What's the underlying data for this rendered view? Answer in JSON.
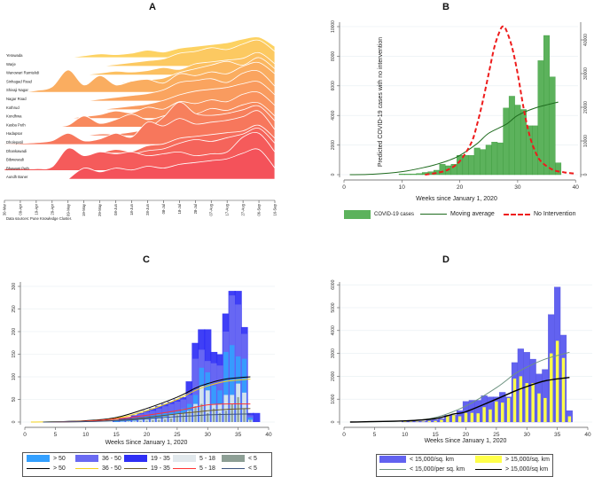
{
  "panels": {
    "a": "A",
    "b": "B",
    "c": "C",
    "d": "D"
  },
  "chart_data": [
    {
      "type": "area",
      "subtype": "ridgeline",
      "panel": "A",
      "source_note": "Data sources: Pune Knowledge Cluster.",
      "x_tick_labels": [
        "30-Mar",
        "09-Apr",
        "19-Apr",
        "29-Apr",
        "09-May",
        "19-May",
        "29-May",
        "08-Jun",
        "18-Jun",
        "28-Jun",
        "08-Jul",
        "18-Jul",
        "28-Jul",
        "07-Aug",
        "17-Aug",
        "27-Aug",
        "06-Sep",
        "16-Sep"
      ],
      "color_top": "#fdd262",
      "color_bottom": "#f4525a",
      "series": [
        {
          "name": "Yerawada",
          "values": [
            0,
            0,
            0,
            0,
            0,
            0.05,
            0.1,
            0.08,
            0.12,
            0.2,
            0.15,
            0.25,
            0.3,
            0.35,
            0.4,
            0.5,
            0.55,
            0.3
          ]
        },
        {
          "name": "Warje",
          "values": [
            0,
            0,
            0,
            0,
            0,
            0,
            0,
            0.05,
            0.1,
            0.15,
            0.2,
            0.35,
            0.4,
            0.5,
            0.45,
            0.6,
            0.7,
            0.4
          ]
        },
        {
          "name": "Wanowari Ramtekdi",
          "values": [
            0,
            0,
            0,
            0,
            0,
            0,
            0.05,
            0.1,
            0.08,
            0.12,
            0.2,
            0.15,
            0.3,
            0.35,
            0.4,
            0.45,
            0.6,
            0.3
          ]
        },
        {
          "name": "Sinhagad Road",
          "values": [
            0,
            0,
            0,
            0,
            0,
            0,
            0,
            0,
            0.05,
            0.1,
            0.15,
            0.3,
            0.4,
            0.5,
            0.6,
            0.5,
            0.7,
            0.4
          ]
        },
        {
          "name": "Shivaji Nagar",
          "values": [
            0,
            0,
            0.05,
            0.15,
            0.6,
            0.2,
            0.45,
            0.2,
            0.3,
            0.35,
            0.25,
            0.5,
            0.45,
            0.55,
            0.5,
            0.7,
            0.8,
            0.5
          ]
        },
        {
          "name": "Nagar Road",
          "values": [
            0,
            0,
            0,
            0,
            0,
            0,
            0.05,
            0.1,
            0.15,
            0.2,
            0.3,
            0.5,
            0.55,
            0.6,
            0.5,
            0.75,
            0.8,
            0.4
          ]
        },
        {
          "name": "Kothrud",
          "values": [
            0,
            0,
            0,
            0,
            0,
            0,
            0,
            0.05,
            0.1,
            0.15,
            0.25,
            0.4,
            0.5,
            0.55,
            0.6,
            0.7,
            0.75,
            0.4
          ]
        },
        {
          "name": "Kondhwa",
          "values": [
            0,
            0,
            0,
            0,
            0,
            0.05,
            0.1,
            0.2,
            0.15,
            0.3,
            0.25,
            0.45,
            0.4,
            0.5,
            0.45,
            0.65,
            0.7,
            0.35
          ]
        },
        {
          "name": "Kasba Peth",
          "values": [
            0,
            0,
            0,
            0,
            0.05,
            0.3,
            0.1,
            0.2,
            0.35,
            0.2,
            0.3,
            0.4,
            0.35,
            0.5,
            0.45,
            0.6,
            0.65,
            0.3
          ]
        },
        {
          "name": "Hadapsar",
          "values": [
            0,
            0,
            0,
            0,
            0,
            0,
            0.05,
            0.05,
            0.1,
            0.2,
            0.5,
            0.9,
            0.6,
            0.55,
            0.6,
            0.7,
            0.8,
            0.4
          ]
        },
        {
          "name": "Dholepatil",
          "values": [
            0.02,
            0.03,
            0.05,
            0.1,
            0.3,
            0.1,
            0.15,
            0.3,
            0.2,
            0.6,
            0.5,
            0.7,
            0.55,
            0.6,
            0.65,
            0.75,
            0.9,
            0.4
          ]
        },
        {
          "name": "Dhankawadi",
          "values": [
            0,
            0,
            0,
            0,
            0,
            0,
            0,
            0.1,
            0.05,
            0.2,
            0.25,
            0.4,
            0.45,
            0.5,
            0.55,
            0.6,
            0.75,
            0.4
          ]
        },
        {
          "name": "Bibwewadi",
          "values": [
            0,
            0,
            0,
            0,
            0,
            0,
            0.05,
            0.1,
            0.2,
            0.3,
            0.35,
            0.5,
            0.6,
            0.55,
            0.65,
            0.75,
            0.9,
            0.5
          ]
        },
        {
          "name": "Bhawani Peth",
          "values": [
            0.05,
            0.05,
            0.05,
            0.1,
            0.6,
            0.4,
            0.5,
            0.45,
            0.5,
            0.4,
            0.45,
            0.5,
            0.4,
            0.45,
            0.5,
            0.9,
            1.0,
            0.5
          ]
        },
        {
          "name": "Aundh Baner",
          "values": [
            0,
            0,
            0,
            0,
            0,
            0.3,
            0.2,
            0.3,
            0.25,
            0.35,
            0.3,
            0.4,
            0.45,
            0.5,
            0.55,
            0.7,
            0.8,
            0.3
          ]
        }
      ]
    },
    {
      "type": "bar",
      "panel": "B",
      "xlabel": "Weeks since January 1, 2020",
      "ylabel_right": "Predicted COVID-19 cases with no intervention",
      "xlim": [
        0,
        40
      ],
      "xticks": [
        0,
        10,
        20,
        30,
        40
      ],
      "ylim": [
        0,
        10000
      ],
      "yticks": [
        0,
        2000,
        4000,
        6000,
        8000,
        10000
      ],
      "ylim_right": [
        0,
        44000
      ],
      "yticks_right": [
        0,
        10000,
        20000,
        30000,
        40000
      ],
      "bars": {
        "name": "COVID-19 cases",
        "color": "#5cb25c",
        "x": [
          10,
          11,
          12,
          13,
          14,
          15,
          16,
          17,
          18,
          19,
          20,
          21,
          22,
          23,
          24,
          25,
          26,
          27,
          28,
          29,
          30,
          31,
          32,
          33,
          34,
          35,
          36,
          37
        ],
        "values": [
          50,
          50,
          50,
          80,
          150,
          200,
          300,
          700,
          600,
          700,
          1300,
          1300,
          1300,
          1800,
          1700,
          2000,
          2200,
          2150,
          4500,
          5300,
          4700,
          4400,
          3300,
          3300,
          7700,
          9400,
          6600,
          800
        ]
      },
      "moving_average": {
        "name": "Moving average",
        "color": "#1e6b1e",
        "x": [
          1,
          5,
          10,
          14,
          16,
          18,
          20,
          23,
          25,
          28,
          30,
          33,
          37
        ],
        "values": [
          0,
          30,
          200,
          500,
          700,
          950,
          1300,
          2100,
          2800,
          3400,
          4000,
          4500,
          4900
        ]
      },
      "no_intervention": {
        "name": "No Intervention",
        "color": "#ee1c1c",
        "axis": "right",
        "x": [
          14,
          16,
          18,
          20,
          22,
          23,
          24,
          25,
          26,
          27,
          27.5,
          28,
          29,
          30,
          31,
          32,
          33,
          34,
          36,
          38,
          40
        ],
        "values": [
          0,
          500,
          1500,
          4000,
          9500,
          15000,
          22000,
          30000,
          38000,
          43000,
          44000,
          43000,
          38000,
          30000,
          20000,
          12000,
          7000,
          4000,
          1500,
          700,
          300
        ]
      }
    },
    {
      "type": "bar",
      "panel": "C",
      "xlabel": "Weeks Since January 1, 2020",
      "xlim": [
        0,
        40
      ],
      "xticks": [
        0,
        5,
        10,
        15,
        20,
        25,
        30,
        35,
        40
      ],
      "ylim": [
        0,
        300
      ],
      "yticks": [
        0,
        50,
        100,
        150,
        200,
        250,
        300
      ],
      "weeks": [
        15,
        16,
        17,
        18,
        19,
        20,
        21,
        22,
        23,
        24,
        25,
        26,
        27,
        28,
        29,
        30,
        31,
        32,
        33,
        34,
        35,
        36,
        37,
        38
      ],
      "bar_series": [
        {
          "name": "19 - 35",
          "color": "#2f2ff5",
          "values": [
            5,
            8,
            10,
            15,
            20,
            25,
            30,
            35,
            40,
            45,
            50,
            55,
            90,
            175,
            205,
            205,
            155,
            150,
            240,
            290,
            290,
            210,
            20,
            20
          ]
        },
        {
          "name": "36 - 50",
          "color": "#6a6af2",
          "values": [
            3,
            5,
            8,
            12,
            18,
            22,
            25,
            30,
            35,
            40,
            45,
            50,
            60,
            140,
            160,
            135,
            130,
            125,
            200,
            280,
            260,
            195,
            15,
            0
          ]
        },
        {
          "name": "> 50",
          "color": "#33a0ff",
          "values": [
            2,
            3,
            5,
            8,
            10,
            12,
            15,
            18,
            20,
            22,
            25,
            30,
            40,
            60,
            120,
            110,
            80,
            70,
            155,
            170,
            145,
            140,
            10,
            0
          ]
        },
        {
          "name": "5 - 18",
          "color": "#e1e8ec",
          "values": [
            0,
            1,
            2,
            3,
            5,
            6,
            8,
            10,
            12,
            15,
            18,
            20,
            25,
            40,
            80,
            70,
            40,
            40,
            60,
            60,
            85,
            65,
            5,
            0
          ]
        },
        {
          "name": "< 5",
          "color": "#8d9f95",
          "values": [
            0,
            0,
            1,
            1,
            2,
            3,
            4,
            5,
            6,
            8,
            15,
            20,
            25,
            35,
            40,
            20,
            30,
            20,
            25,
            40,
            55,
            30,
            5,
            0
          ]
        }
      ],
      "line_series": [
        {
          "name": "> 50",
          "color": "#000000",
          "x": [
            3,
            10,
            15,
            20,
            25,
            28,
            30,
            33,
            37
          ],
          "values": [
            0,
            3,
            10,
            30,
            55,
            75,
            85,
            95,
            100
          ]
        },
        {
          "name": "36 - 50",
          "color": "#f2d21a",
          "x": [
            1,
            10,
            15,
            20,
            25,
            28,
            30,
            33,
            37
          ],
          "values": [
            0,
            2,
            8,
            25,
            50,
            70,
            80,
            90,
            95
          ]
        },
        {
          "name": "19 - 35",
          "color": "#6b5a2a",
          "x": [
            3,
            10,
            15,
            20,
            25,
            28,
            30,
            33,
            37
          ],
          "values": [
            0,
            1,
            4,
            10,
            18,
            22,
            25,
            28,
            30
          ]
        },
        {
          "name": "5 - 18",
          "color": "#ff3333",
          "x": [
            4,
            10,
            15,
            20,
            25,
            28,
            30,
            33,
            37
          ],
          "values": [
            0,
            2,
            7,
            15,
            25,
            33,
            38,
            40,
            40
          ]
        },
        {
          "name": "< 5",
          "color": "#3d5580",
          "x": [
            3,
            10,
            15,
            20,
            25,
            28,
            30,
            33,
            37
          ],
          "values": [
            0,
            1,
            3,
            7,
            12,
            14,
            16,
            17,
            18
          ]
        }
      ]
    },
    {
      "type": "bar",
      "panel": "D",
      "xlabel": "Weeks Since January 1, 2020",
      "xlim": [
        0,
        40
      ],
      "xticks": [
        0,
        5,
        10,
        15,
        20,
        25,
        30,
        35,
        40
      ],
      "ylim": [
        0,
        6000
      ],
      "yticks": [
        0,
        1000,
        2000,
        3000,
        4000,
        5000,
        6000
      ],
      "weeks": [
        10,
        11,
        12,
        13,
        14,
        15,
        16,
        17,
        18,
        19,
        20,
        21,
        22,
        23,
        24,
        25,
        26,
        27,
        28,
        29,
        30,
        31,
        32,
        33,
        34,
        35,
        36,
        37
      ],
      "bar_series": [
        {
          "name": "< 15,000/sq. km",
          "color": "#6262f0",
          "values": [
            30,
            30,
            30,
            30,
            80,
            100,
            150,
            300,
            300,
            500,
            900,
            950,
            950,
            1150,
            1100,
            1100,
            1300,
            1100,
            2600,
            3200,
            3050,
            2750,
            2100,
            2300,
            4700,
            5900,
            3800,
            500
          ]
        },
        {
          "name": "> 15,000/sq. km",
          "color": "#ffff4a",
          "values": [
            20,
            20,
            20,
            20,
            50,
            50,
            100,
            300,
            300,
            250,
            400,
            400,
            380,
            650,
            550,
            900,
            850,
            1050,
            1900,
            2000,
            1700,
            1700,
            1250,
            1050,
            3000,
            3550,
            2800,
            250
          ]
        }
      ],
      "line_series": [
        {
          "name": "< 15,000/per sq. km",
          "color": "#6f9482",
          "x": [
            1,
            10,
            15,
            20,
            25,
            28,
            30,
            33,
            37
          ],
          "values": [
            0,
            50,
            200,
            700,
            1500,
            2100,
            2400,
            2750,
            3050
          ]
        },
        {
          "name": "> 15,000/sq km",
          "color": "#000000",
          "x": [
            1,
            10,
            15,
            18,
            20,
            25,
            28,
            30,
            33,
            37
          ],
          "values": [
            0,
            50,
            150,
            350,
            450,
            1000,
            1350,
            1550,
            1800,
            1950
          ]
        }
      ]
    }
  ]
}
